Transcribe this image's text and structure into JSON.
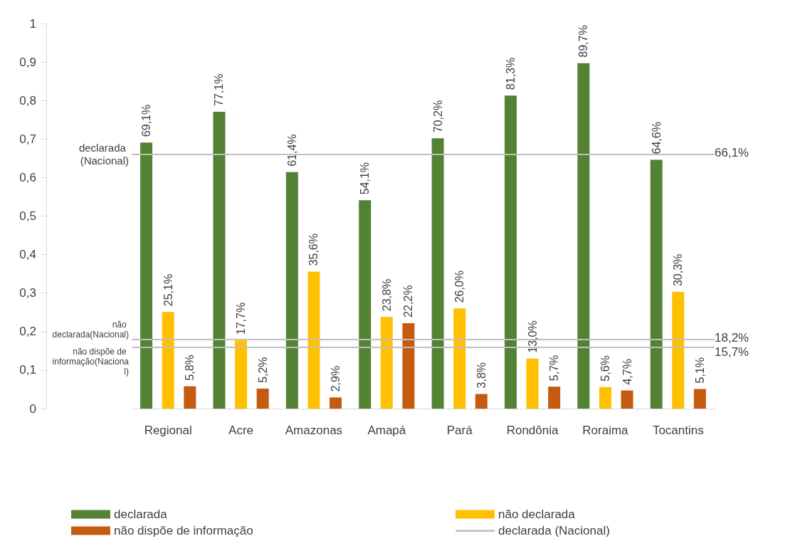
{
  "chart_data": {
    "type": "bar",
    "categories": [
      "Regional",
      "Acre",
      "Amazonas",
      "Amapá",
      "Pará",
      "Rondônia",
      "Roraima",
      "Tocantins"
    ],
    "series": [
      {
        "name": "declarada",
        "color": "#548235",
        "values": [
          0.691,
          0.771,
          0.614,
          0.541,
          0.702,
          0.813,
          0.897,
          0.646
        ],
        "value_labels": [
          "69,1%",
          "77,1%",
          "61,4%",
          "54,1%",
          "70,2%",
          "81,3%",
          "89,7%",
          "64,6%"
        ]
      },
      {
        "name": "não declarada",
        "color": "#ffc000",
        "values": [
          0.251,
          0.177,
          0.356,
          0.238,
          0.26,
          0.13,
          0.056,
          0.303
        ],
        "value_labels": [
          "25,1%",
          "17,7%",
          "35,6%",
          "23,8%",
          "26,0%",
          "13,0%",
          "5,6%",
          "30,3%"
        ]
      },
      {
        "name": "não dispõe de informação",
        "color": "#c55a11",
        "values": [
          0.058,
          0.052,
          0.029,
          0.222,
          0.038,
          0.057,
          0.047,
          0.051
        ],
        "value_labels": [
          "5,8%",
          "5,2%",
          "2,9%",
          "22,2%",
          "3,8%",
          "5,7%",
          "4,7%",
          "5,1%"
        ]
      }
    ],
    "ylim": [
      0,
      1
    ],
    "yticks": [
      0,
      {
        "value": 0.1,
        "label": "0,1"
      },
      {
        "value": 0.2,
        "label": "0,2"
      },
      {
        "value": 0.3,
        "label": "0,3"
      },
      {
        "value": 0.4,
        "label": "0,4"
      },
      {
        "value": 0.5,
        "label": "0,5"
      },
      {
        "value": 0.6,
        "label": "0,6"
      },
      {
        "value": 0.7,
        "label": "0,7"
      },
      {
        "value": 0.8,
        "label": "0,8"
      },
      {
        "value": 0.9,
        "label": "0,9"
      },
      1
    ],
    "ref_lines": [
      {
        "axis": "y",
        "value": 0.661,
        "label": "declarada (Nacional)",
        "color": "#bfbfbf"
      },
      {
        "axis": "y",
        "value": 0.182,
        "label": "não declarada(Nacional)",
        "color": "#bfbfbf"
      },
      {
        "axis": "y",
        "value": 0.157,
        "label": "não dispõe de informação(Nacional)",
        "color": "#bfbfbf"
      }
    ],
    "annotations": [
      "66,1%",
      "18,2%",
      "15,7%"
    ],
    "grid": false,
    "legend": "bottom"
  }
}
